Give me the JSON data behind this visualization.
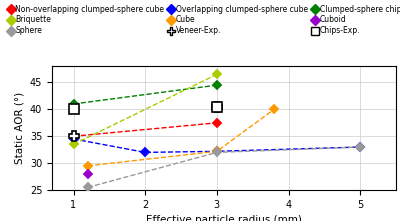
{
  "series": {
    "non_overlapping": {
      "label": "Non-overlapping clumped-sphere cube",
      "color": "#ff0000",
      "x": [
        1.0,
        3.0
      ],
      "y": [
        35.0,
        37.5
      ]
    },
    "overlapping": {
      "label": "Overlapping clumped-sphere cube",
      "color": "#0000ff",
      "x": [
        1.0,
        2.0,
        3.0,
        5.0
      ],
      "y": [
        34.5,
        32.0,
        32.2,
        33.0
      ]
    },
    "chips": {
      "label": "Clumped-sphere chips",
      "color": "#008000",
      "x": [
        1.0,
        3.0
      ],
      "y": [
        41.0,
        44.5
      ]
    },
    "briquette": {
      "label": "Briquette",
      "color": "#aacc00",
      "x": [
        1.0,
        3.0
      ],
      "y": [
        33.5,
        46.5
      ]
    },
    "cube": {
      "label": "Cube",
      "color": "#ff9900",
      "x": [
        1.2,
        3.0,
        3.8
      ],
      "y": [
        29.5,
        32.2,
        40.0
      ]
    },
    "cuboid": {
      "label": "Cuboid",
      "color": "#9900cc",
      "x": [
        1.2
      ],
      "y": [
        28.0
      ]
    },
    "sphere": {
      "label": "Sphere",
      "color": "#999999",
      "x": [
        1.2,
        3.0,
        5.0
      ],
      "y": [
        25.5,
        32.0,
        33.0
      ]
    }
  },
  "exp_veneer": {
    "label": "Veneer-Exp.",
    "x": [
      1.0,
      3.0
    ],
    "y": [
      35.0,
      40.5
    ]
  },
  "exp_chips": {
    "label": "Chips-Exp.",
    "x": [
      1.0,
      3.0
    ],
    "y": [
      40.0,
      40.5
    ]
  },
  "xlabel": "Effective particle radius (mm)",
  "ylabel": "Static AOR (°)",
  "xlim": [
    0.7,
    5.5
  ],
  "ylim": [
    25,
    48
  ],
  "yticks": [
    25,
    30,
    35,
    40,
    45
  ],
  "xticks": [
    1,
    2,
    3,
    4,
    5
  ]
}
